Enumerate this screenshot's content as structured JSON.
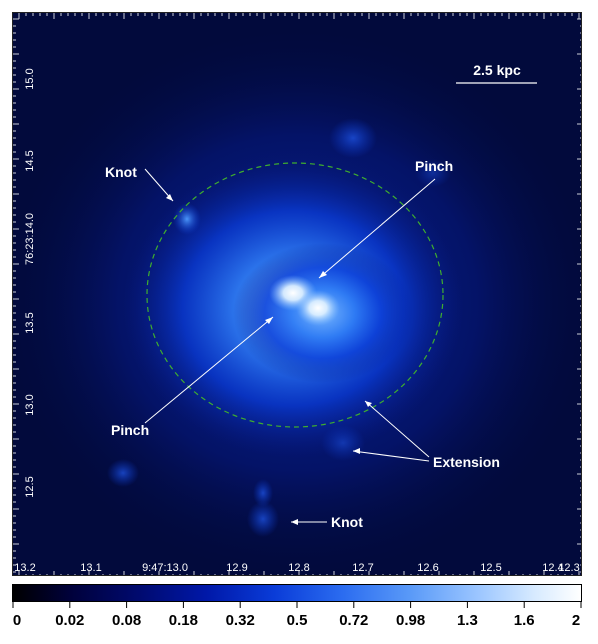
{
  "image": {
    "x_axis_ticks": [
      "13.2",
      "13.1",
      "9:47:13.0",
      "12.9",
      "12.8",
      "12.7",
      "12.6",
      "12.5",
      "12.4",
      "12.3"
    ],
    "y_axis_ticks": [
      "15.0",
      "14.5",
      "76:23:14.0",
      "13.5",
      "13.0",
      "12.5"
    ],
    "scale_bar_label": "2.5 kpc",
    "annotations": {
      "knot_upper": "Knot",
      "pinch_upper": "Pinch",
      "pinch_lower": "Pinch",
      "extension": "Extension",
      "knot_lower": "Knot"
    },
    "colors": {
      "background": "#000514",
      "mid": "#0a3cd8",
      "bright": "#7ab8ff",
      "peak": "#ffffff",
      "ellipse": "#3fae2e"
    }
  },
  "colorbar": {
    "labels": [
      "0",
      "0.02",
      "0.08",
      "0.18",
      "0.32",
      "0.5",
      "0.72",
      "0.98",
      "1.3",
      "1.6",
      "2"
    ]
  }
}
